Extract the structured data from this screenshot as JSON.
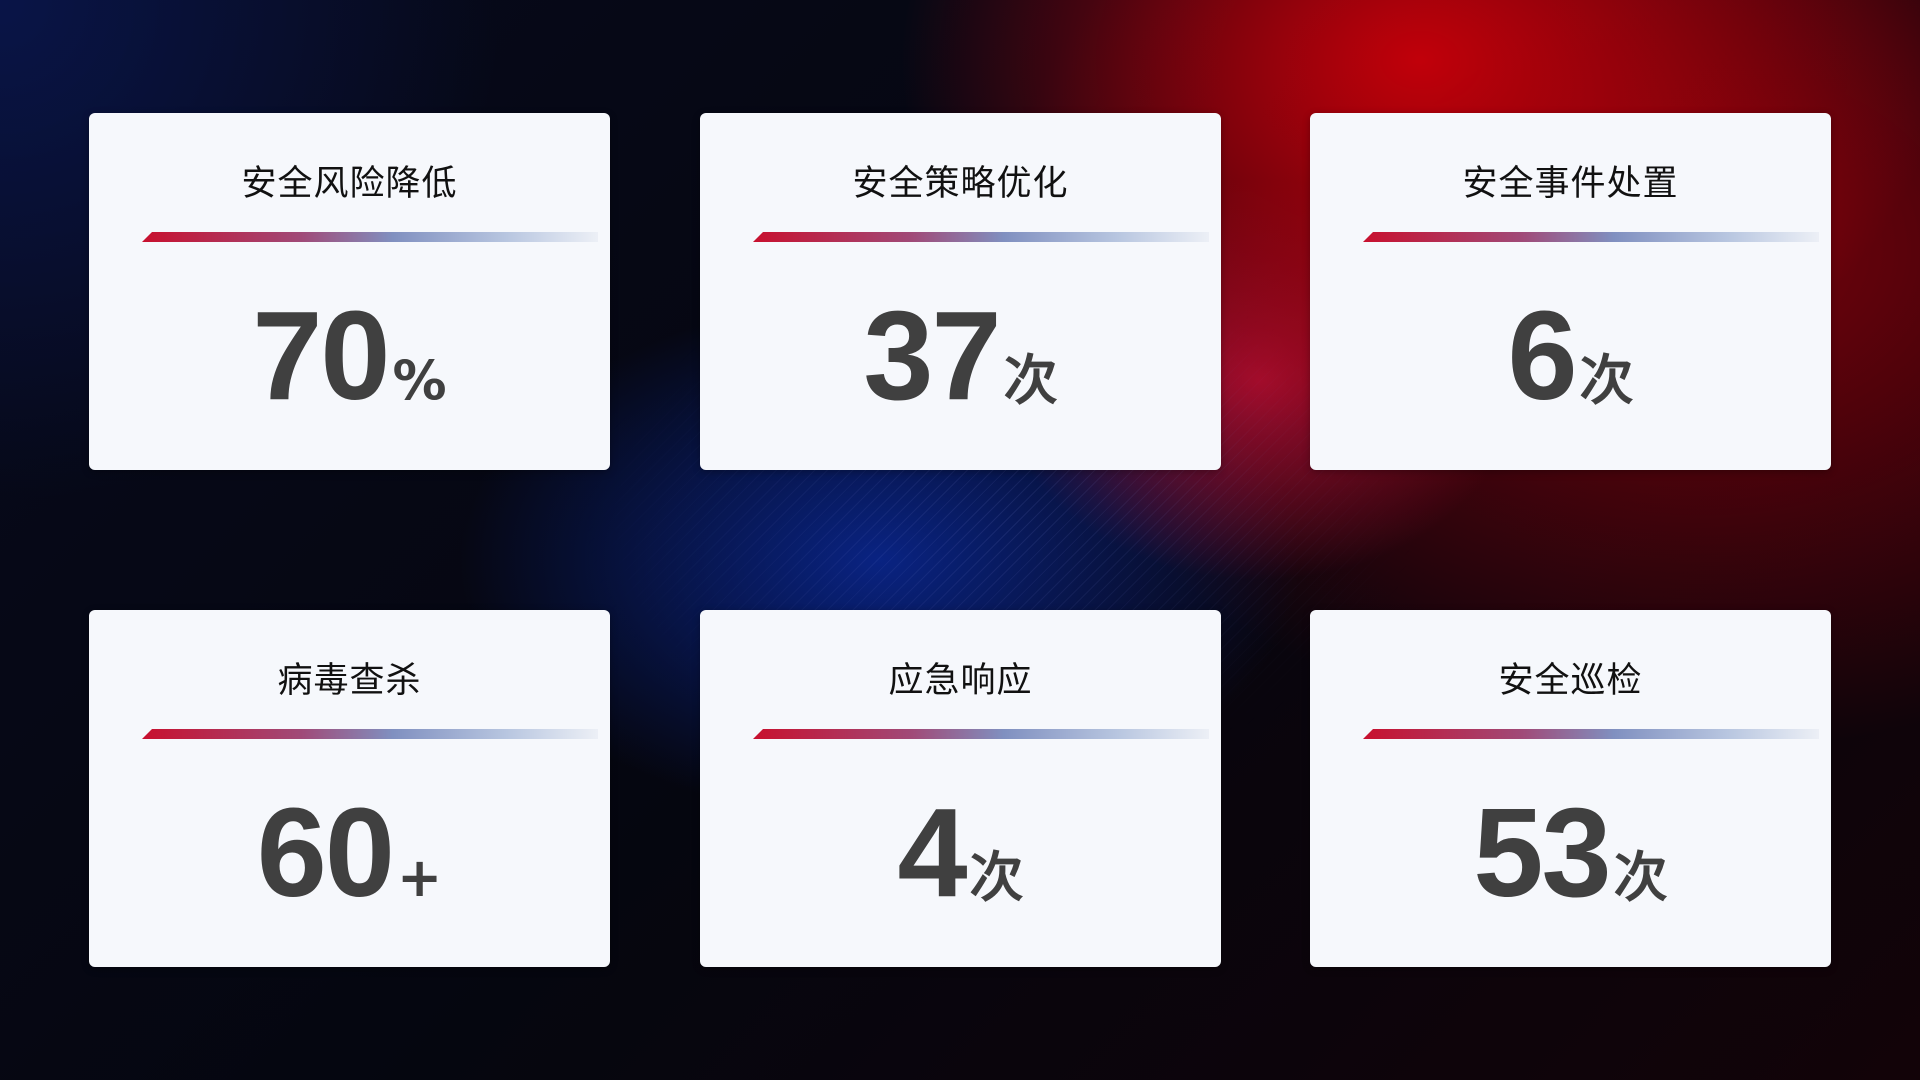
{
  "colors": {
    "accent_red": "#c8102e",
    "accent_blue": "#8090c0",
    "card_bg": "#f6f8fc",
    "value_text": "#404040"
  },
  "cards": [
    {
      "title": "安全风险降低",
      "value": "70",
      "unit": "%"
    },
    {
      "title": "安全策略优化",
      "value": "37",
      "unit": "次"
    },
    {
      "title": "安全事件处置",
      "value": "6",
      "unit": "次"
    },
    {
      "title": "病毒查杀",
      "value": "60",
      "unit": "+"
    },
    {
      "title": "应急响应",
      "value": "4",
      "unit": "次"
    },
    {
      "title": "安全巡检",
      "value": "53",
      "unit": "次"
    }
  ]
}
